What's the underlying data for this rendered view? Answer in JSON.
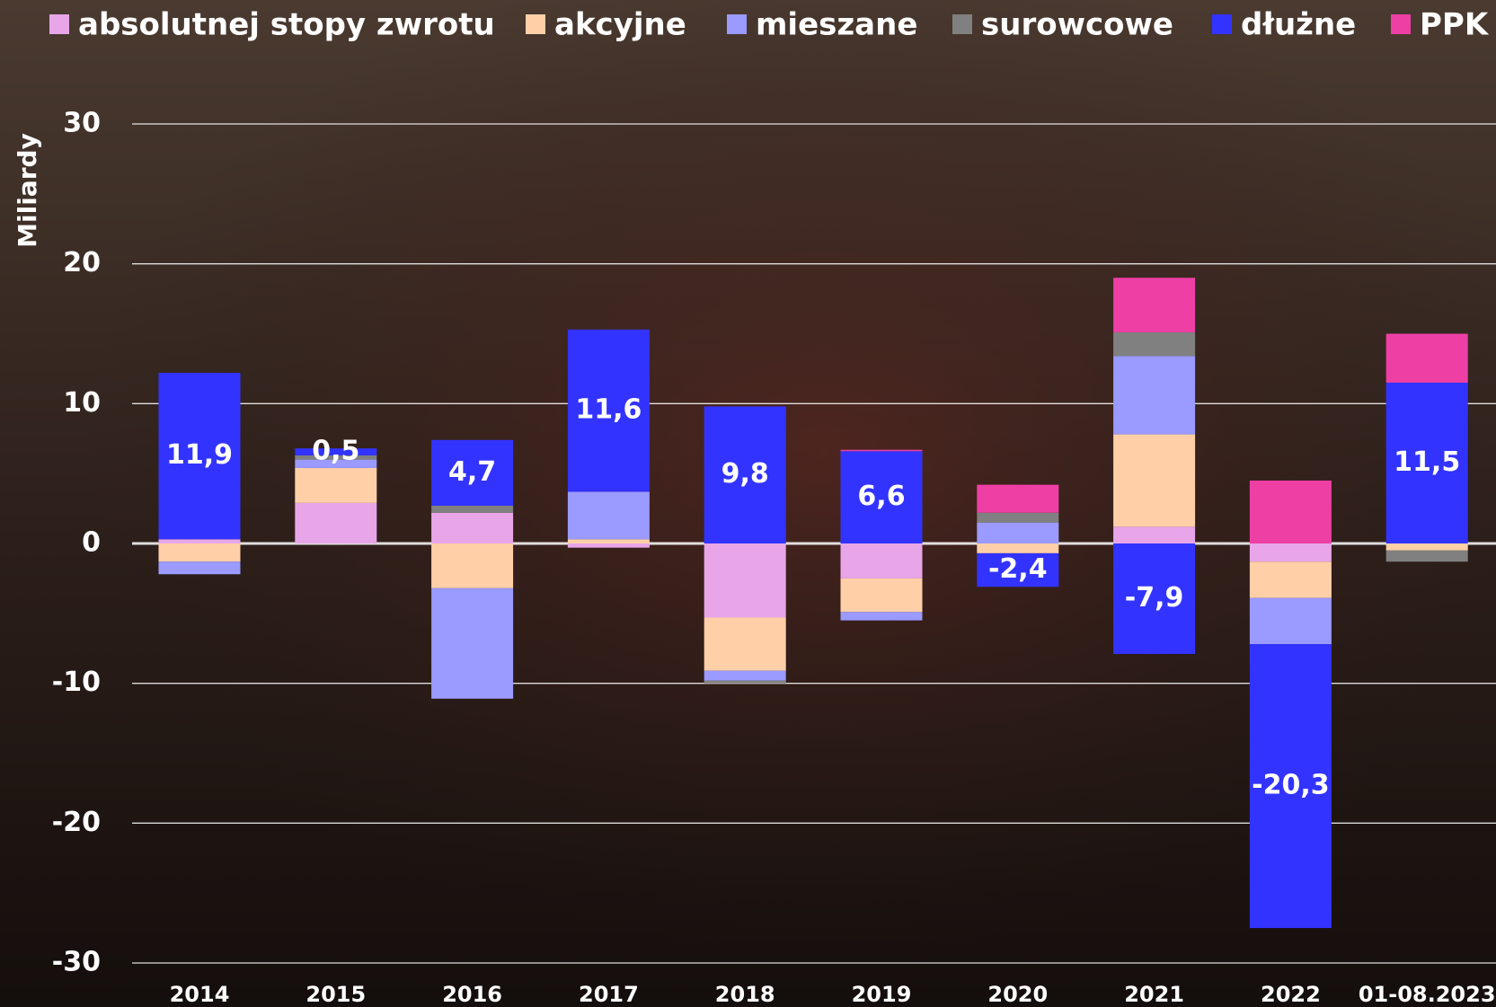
{
  "chart_data": {
    "type": "stacked_bar",
    "y_label": "Miliardy",
    "categories": [
      "2014",
      "2015",
      "2016",
      "2017",
      "2018",
      "2019",
      "2020",
      "2021",
      "2022",
      "01-08.2023"
    ],
    "series": [
      {
        "name": "absolutnej stopy zwrotu",
        "color": "#e8a6e8",
        "values": [
          0.3,
          2.9,
          2.2,
          -0.3,
          -5.3,
          -2.5,
          0,
          1.2,
          -1.3,
          0
        ]
      },
      {
        "name": "akcyjne",
        "color": "#ffd0a8",
        "values": [
          -1.3,
          2.5,
          -3.2,
          0.3,
          -3.8,
          -2.4,
          -0.7,
          6.6,
          -2.6,
          -0.5
        ]
      },
      {
        "name": "mieszane",
        "color": "#9a9aff",
        "values": [
          -0.9,
          0.6,
          -7.9,
          3.4,
          -0.7,
          -0.6,
          1.5,
          5.6,
          -3.3,
          0
        ]
      },
      {
        "name": "surowcowe",
        "color": "#808080",
        "values": [
          0,
          0.3,
          0.5,
          0,
          -0.2,
          0,
          0.7,
          1.7,
          0,
          -0.8
        ]
      },
      {
        "name": "dłużne",
        "color": "#3333ff",
        "values": [
          11.9,
          0.5,
          4.7,
          11.6,
          9.8,
          6.6,
          -2.4,
          -7.9,
          -20.3,
          11.5
        ],
        "value_labels": [
          "11,9",
          "0,5",
          "4,7",
          "11,6",
          "9,8",
          "6,6",
          "-2,4",
          "-7,9",
          "-20,3",
          "11,5"
        ]
      },
      {
        "name": "PPK",
        "color": "#ee3fa5",
        "values": [
          0,
          0,
          0,
          0,
          0,
          0.1,
          2.0,
          3.9,
          4.5,
          3.5
        ]
      }
    ],
    "ylim": [
      -30,
      30
    ],
    "yticks": [
      -30,
      -20,
      -10,
      0,
      10,
      20,
      30
    ],
    "grid": true,
    "legend": "top"
  }
}
